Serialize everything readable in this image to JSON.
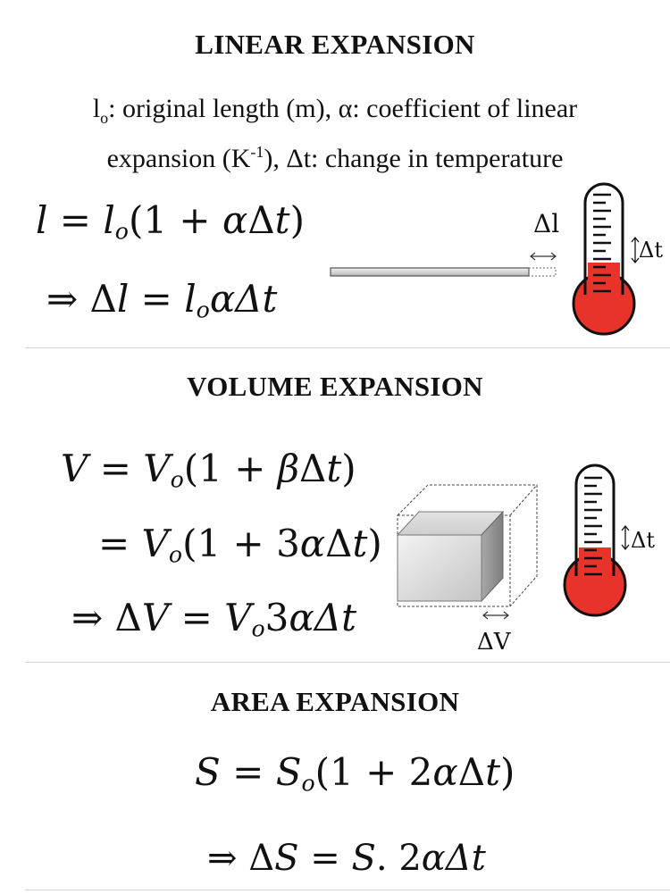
{
  "linear": {
    "heading": "LINEAR EXPANSION",
    "desc": {
      "sym_l": "l",
      "sym_l_sub": "o",
      "line1_rest": ": original length (m), α: coefficient of linear",
      "line2_a": "expansion (K",
      "line2_sup": "-1",
      "line2_b": "), Δt: change in temperature"
    },
    "eq1": {
      "a": "l",
      "b": " = ",
      "c": "l",
      "c_sub": "o",
      "d": "(1 + ",
      "e": "α",
      "f": "Δ",
      "g": "t",
      "h": ")"
    },
    "eq2": {
      "a": "⇒ Δ",
      "b": "l",
      "c": " = ",
      "d": "l",
      "d_sub": "o",
      "e": "αΔ",
      "f": "t"
    },
    "rod_label": "Δl",
    "thermo_label": "Δt"
  },
  "volume": {
    "heading": "VOLUME EXPANSION",
    "eq1": {
      "a": "V",
      "b": " = ",
      "c": "V",
      "c_sub": "o",
      "d": "(1 + ",
      "e": "β",
      "f": "Δ",
      "g": "t",
      "h": ")"
    },
    "eq2": {
      "a": "= ",
      "c": "V",
      "c_sub": "o",
      "d": "(1 + 3",
      "e": "α",
      "f": "Δ",
      "g": "t",
      "h": ")"
    },
    "eq3": {
      "a": "⇒ Δ",
      "b": "V",
      "c": " = ",
      "d": "V",
      "d_sub": "o",
      "e": "3",
      "f": "αΔ",
      "g": "t"
    },
    "box_label": "ΔV",
    "thermo_label": "Δt"
  },
  "area": {
    "heading": "AREA EXPANSION",
    "eq1": {
      "a": "S",
      "b": " = ",
      "c": "S",
      "c_sub": "o",
      "d": "(1 + 2",
      "e": "α",
      "f": "Δ",
      "g": "t",
      "h": ")"
    },
    "eq2": {
      "a": "⇒ Δ",
      "b": "S",
      "c": " = ",
      "d": "S",
      "e": ". 2",
      "f": "αΔ",
      "g": "t"
    }
  },
  "colors": {
    "mercury": "#e8332a",
    "text": "#111111",
    "divider": "#d5d5d5",
    "box": "#cfcfcf"
  }
}
